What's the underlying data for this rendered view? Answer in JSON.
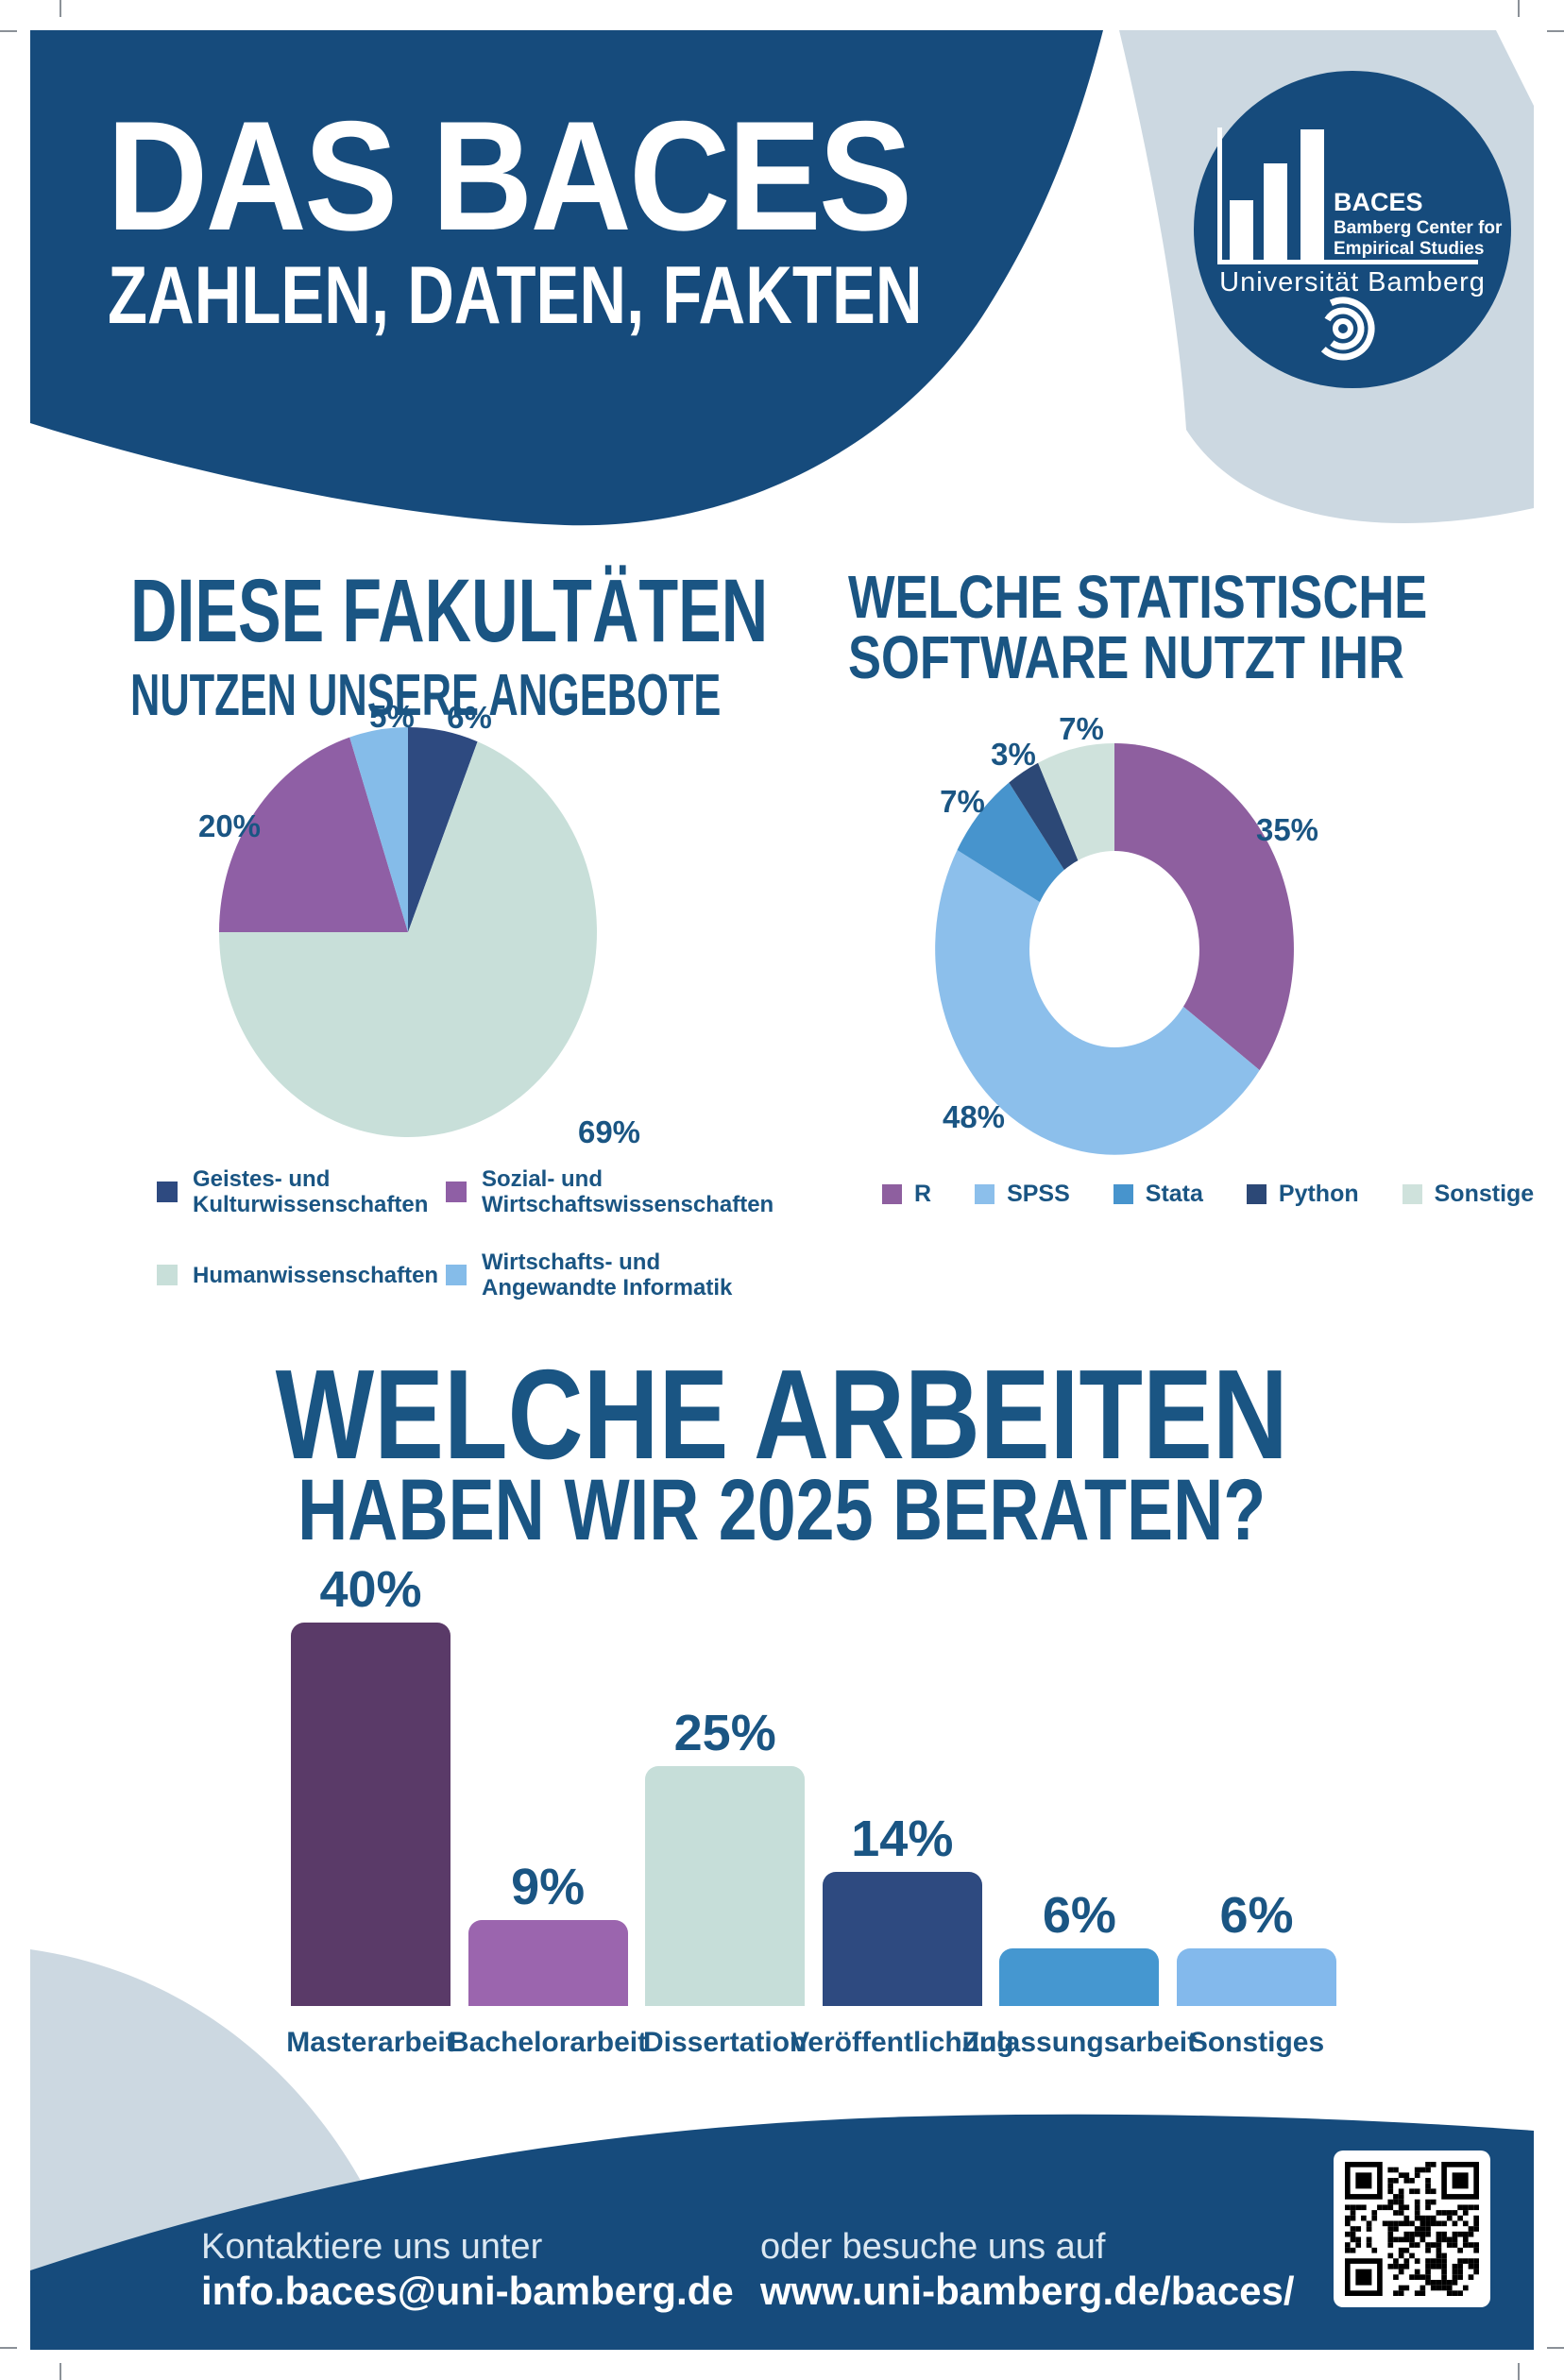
{
  "poster": {
    "header": {
      "title": "DAS BACES",
      "subtitle": "ZAHLEN, DATEN, FAKTEN"
    },
    "logo": {
      "name": "BACES",
      "subtitle_line1": "Bamberg Center for",
      "subtitle_line2": "Empirical Studies",
      "university": "Universität Bamberg"
    },
    "footer": {
      "contact_label": "Kontaktiere uns unter",
      "contact_email": "info.baces@uni-bamberg.de",
      "visit_label": "oder besuche uns auf",
      "visit_url": "www.uni-bamberg.de/baces/"
    },
    "colors": {
      "primary_blue": "#164b7c",
      "light_gray_blue": "#ccd8e1",
      "heading_blue": "#1a5583"
    }
  },
  "chart_data": [
    {
      "type": "pie",
      "title_line1": "DIESE FAKULTÄTEN",
      "title_line2": "NUTZEN UNSERE ANGEBOTE",
      "legend_position": "bottom",
      "segments": [
        {
          "label": "Geistes- und Kulturwissenschaften",
          "legend_lines": [
            "Geistes- und",
            "Kulturwissenschaften"
          ],
          "value": 6,
          "pct_label": "6%",
          "color": "#2e4a80"
        },
        {
          "label": "Humanwissenschaften",
          "legend_lines": [
            "Humanwissenschaften"
          ],
          "value": 69,
          "pct_label": "69%",
          "color": "#c8dfd9"
        },
        {
          "label": "Sozial- und Wirtschaftswissenschaften",
          "legend_lines": [
            "Sozial- und",
            "Wirtschaftswissenschaften"
          ],
          "value": 20,
          "pct_label": "20%",
          "color": "#8f5fa5"
        },
        {
          "label": "Wirtschafts- und Angewandte Informatik",
          "legend_lines": [
            "Wirtschafts- und",
            "Angewandte Informatik"
          ],
          "value": 5,
          "pct_label": "5%",
          "color": "#85bce9"
        }
      ]
    },
    {
      "type": "pie",
      "subtype": "donut",
      "title_line1": "WELCHE STATISTISCHE",
      "title_line2": "SOFTWARE NUTZT IHR",
      "legend_position": "bottom",
      "segments": [
        {
          "label": "R",
          "value": 35,
          "pct_label": "35%",
          "color": "#8e5f9f"
        },
        {
          "label": "SPSS",
          "value": 48,
          "pct_label": "48%",
          "color": "#8cbfeb"
        },
        {
          "label": "Stata",
          "value": 7,
          "pct_label": "7%",
          "color": "#4794cd"
        },
        {
          "label": "Python",
          "value": 3,
          "pct_label": "3%",
          "color": "#2c4876"
        },
        {
          "label": "Sonstige",
          "value": 7,
          "pct_label": "7%",
          "color": "#cfe2dc"
        }
      ]
    },
    {
      "type": "bar",
      "title_line1": "WELCHE ARBEITEN",
      "title_line2": "HABEN WIR 2025 BERATEN?",
      "categories": [
        "Masterarbeit",
        "Bachelorarbeit",
        "Dissertation",
        "Veröffentlichung",
        "Zulassungsarbeit",
        "Sonstiges"
      ],
      "values": [
        40,
        9,
        25,
        14,
        6,
        6
      ],
      "pct_labels": [
        "40%",
        "9%",
        "25%",
        "14%",
        "6%",
        "6%"
      ],
      "colors": [
        "#5a3a68",
        "#9b65ae",
        "#c6ded9",
        "#2e4a80",
        "#4597d0",
        "#83b9ec"
      ],
      "ylim": [
        0,
        40
      ],
      "grid": false
    }
  ]
}
